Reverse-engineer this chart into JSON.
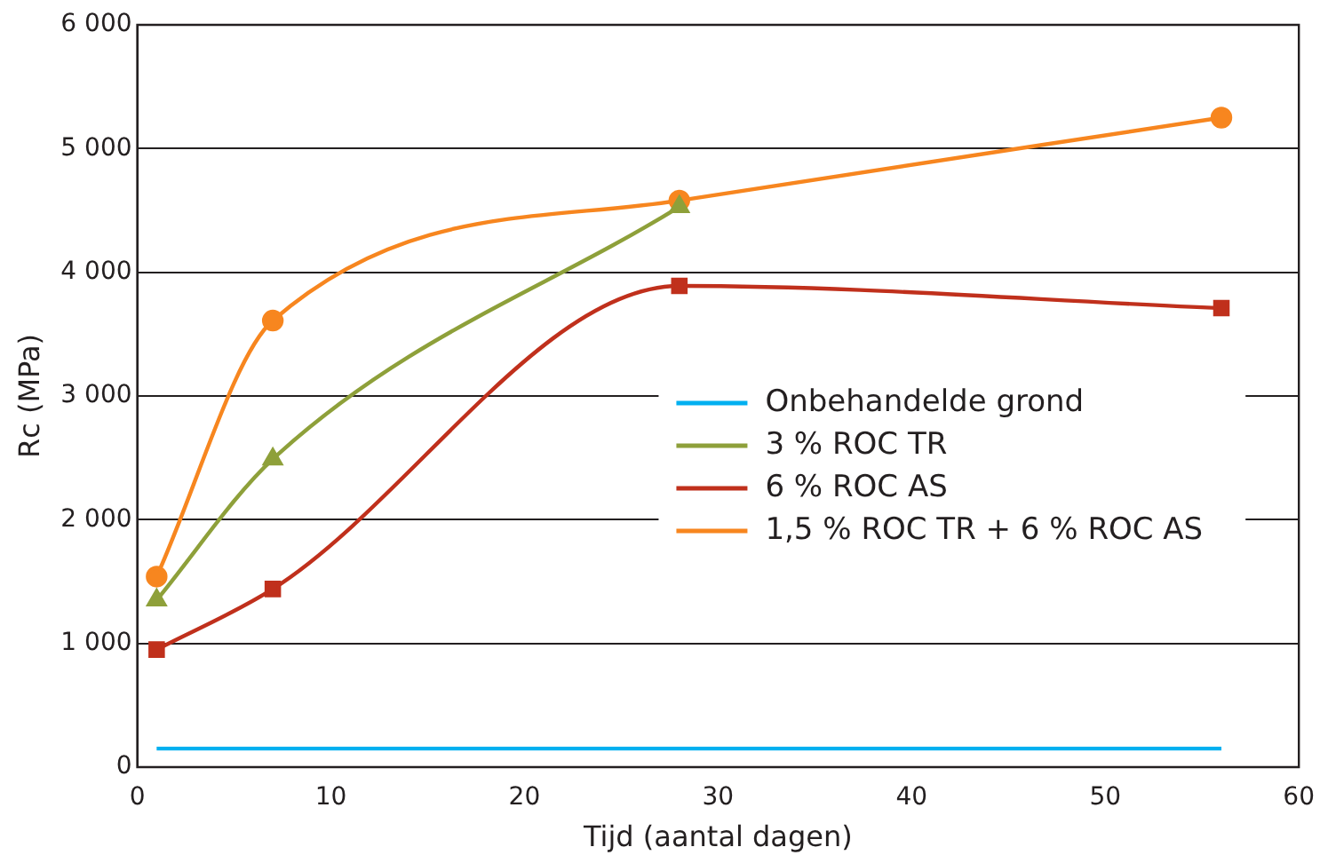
{
  "chart_data": {
    "type": "line",
    "xlabel": "Tijd (aantal dagen)",
    "ylabel": "Rc (MPa)",
    "xlim": [
      0,
      60
    ],
    "xticks": [
      0,
      10,
      20,
      30,
      40,
      50,
      60
    ],
    "ylim": [
      0,
      6000
    ],
    "yticks": [
      {
        "value": 0,
        "label": "0"
      },
      {
        "value": 1000,
        "label": "1 000"
      },
      {
        "value": 2000,
        "label": "2 000"
      },
      {
        "value": 3000,
        "label": "3 000"
      },
      {
        "value": 4000,
        "label": "4 000"
      },
      {
        "value": 5000,
        "label": "5 000"
      },
      {
        "value": 6000,
        "label": "6 000"
      }
    ],
    "grid": "y",
    "legend": "right",
    "line_style": "solid",
    "series": [
      {
        "name": "Onbehandelde grond",
        "color": "#00b0f0",
        "x": [
          1,
          56
        ],
        "values": [
          150,
          150
        ],
        "marker": "none"
      },
      {
        "name": "3 % ROC TR",
        "color": "#8ea03a",
        "x": [
          1,
          7,
          28
        ],
        "values": [
          1350,
          2490,
          4530
        ],
        "marker": "triangle"
      },
      {
        "name": "6 % ROC AS",
        "color": "#c0301c",
        "x": [
          1,
          7,
          28,
          56
        ],
        "values": [
          950,
          1440,
          3890,
          3710
        ],
        "marker": "square"
      },
      {
        "name": "1,5 % ROC TR + 6 % ROC AS",
        "color": "#f7861f",
        "x": [
          1,
          7,
          28,
          56
        ],
        "values": [
          1540,
          3610,
          4580,
          5250
        ],
        "marker": "circle"
      }
    ]
  }
}
